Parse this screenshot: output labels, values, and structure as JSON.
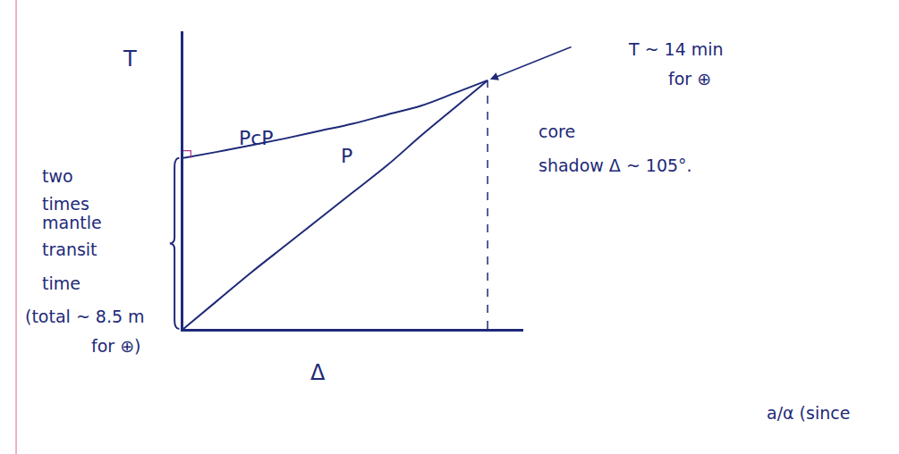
{
  "chart_data": {
    "type": "line",
    "x_label": "Δ",
    "y_label": "T",
    "x": [
      0,
      10,
      20,
      30,
      40,
      50,
      60,
      70,
      80,
      89.5
    ],
    "series": [
      {
        "name": "PcP",
        "color": "#1e2a78",
        "values": [
          57.4,
          59.5,
          61.7,
          64,
          66.5,
          69,
          72,
          75,
          79.3,
          83.5
        ]
      },
      {
        "name": "P",
        "color": "#1e2a78",
        "values": [
          0,
          9.5,
          19,
          28,
          37,
          46,
          55,
          65,
          74.5,
          83.5
        ]
      }
    ],
    "xlim": [
      0,
      100
    ],
    "ylim": [
      0,
      100
    ],
    "xticks": [],
    "yticks": [],
    "tick_labels": false,
    "grid": false,
    "annotations": [
      "T ~ 14 min",
      "for ⊕",
      "core",
      "shadow Δ ~ 105°.",
      "two",
      "times",
      "mantle",
      "transit",
      "time",
      "(total ~ 8.5 m",
      "for ⊕)",
      "a/α (since"
    ]
  }
}
